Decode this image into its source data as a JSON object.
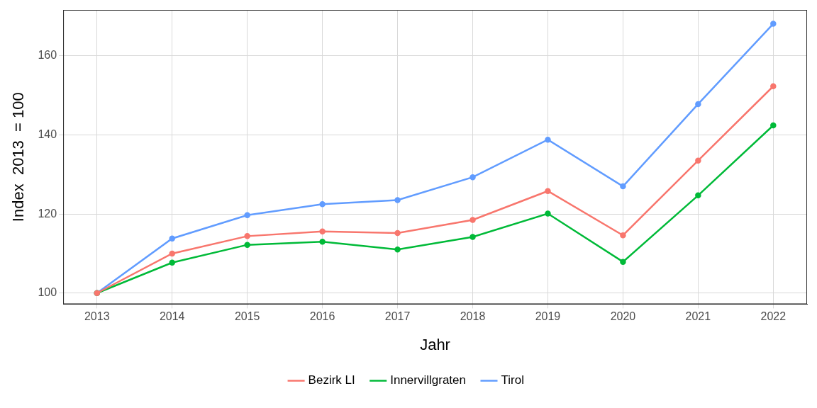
{
  "chart_data": {
    "type": "line",
    "x_label": "Jahr",
    "y_label": "Index  2013  = 100",
    "x": [
      2013,
      2014,
      2015,
      2016,
      2017,
      2018,
      2019,
      2020,
      2021,
      2022
    ],
    "series": [
      {
        "name": "Bezirk LI",
        "color": "#F8766D",
        "marker": "circle",
        "line_style": "solid",
        "values": [
          100,
          110.0,
          114.4,
          115.6,
          115.2,
          118.5,
          125.8,
          114.6,
          133.5,
          152.3
        ]
      },
      {
        "name": "Innervillgraten",
        "color": "#00BA38",
        "marker": "circle",
        "line_style": "solid",
        "values": [
          100,
          107.7,
          112.2,
          113.0,
          111.0,
          114.2,
          120.1,
          107.9,
          124.7,
          142.4
        ]
      },
      {
        "name": "Tirol",
        "color": "#619CFF",
        "marker": "circle",
        "line_style": "solid",
        "values": [
          100,
          113.8,
          119.7,
          122.5,
          123.5,
          129.3,
          138.8,
          127.0,
          147.8,
          168.1
        ]
      }
    ],
    "xlim": [
      2012.55,
      2022.45
    ],
    "xticks": [
      2013,
      2014,
      2015,
      2016,
      2017,
      2018,
      2019,
      2020,
      2021,
      2022
    ],
    "ylim": [
      97.2,
      171.6
    ],
    "yticks": [
      100,
      120,
      140,
      160
    ],
    "grid": true,
    "legend": "bottom"
  }
}
